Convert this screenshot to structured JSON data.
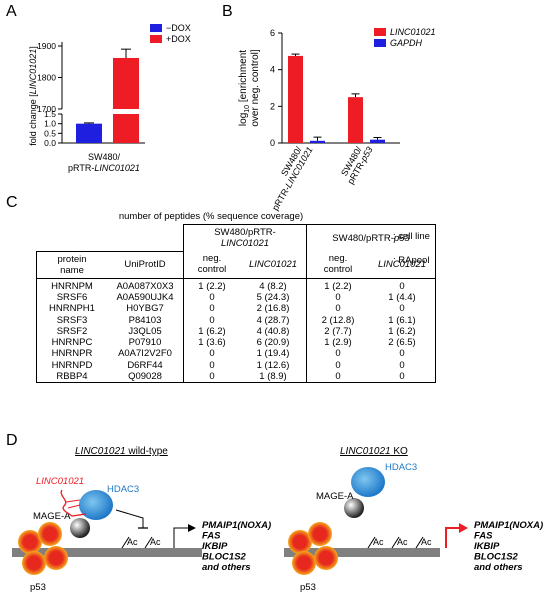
{
  "panels": {
    "a": {
      "letter": "A"
    },
    "b": {
      "letter": "B"
    },
    "c": {
      "letter": "C"
    },
    "d": {
      "letter": "D"
    }
  },
  "chart_data": [
    {
      "type": "bar",
      "panel": "A",
      "title": "",
      "ylabel": "fold change [LINC01021]",
      "xlabel": "SW480/ pRTR-LINC01021",
      "axis_break": {
        "lower": [
          0,
          1.5
        ],
        "upper": [
          1700,
          1900
        ]
      },
      "lower_ticks": [
        "0.0",
        "0.5",
        "1.0",
        "1.5"
      ],
      "upper_ticks": [
        "1700",
        "1800",
        "1900"
      ],
      "series": [
        {
          "name": "−DOX",
          "color": "#1f1fe0",
          "values": [
            1.0
          ],
          "error": [
            0.04
          ]
        },
        {
          "name": "+DOX",
          "color": "#ee1c24",
          "values": [
            1862
          ],
          "error": [
            28
          ]
        }
      ]
    },
    {
      "type": "bar",
      "panel": "B",
      "title": "",
      "ylabel": "log10 [enrichment over neg. control]",
      "categories": [
        "SW480/ pRTR-LINC01021",
        "SW480/ pRTR-p53"
      ],
      "ylim": [
        0,
        6
      ],
      "yticks": [
        "0",
        "2",
        "4",
        "6"
      ],
      "series": [
        {
          "name": "LINC01021",
          "color": "#ee1c24",
          "values": [
            4.75,
            2.5
          ],
          "error": [
            0.1,
            0.18
          ]
        },
        {
          "name": "GAPDH",
          "color": "#1f1fe0",
          "values": [
            0.12,
            0.18
          ],
          "error": [
            0.2,
            0.12
          ]
        }
      ]
    }
  ],
  "table": {
    "caption": "number of peptides (% sequence coverage)",
    "group1": "SW480/pRTR-",
    "group1_line2": "LINC01021",
    "group2_prefix": "SW480/pRTR-",
    "group2_italic": "p53",
    "cell_line_label": ": cell line",
    "rapool_label": ": RApool",
    "col_protein_line1": "protein",
    "col_protein_line2": "name",
    "col_uniprot": "UniProtID",
    "col_neg_line1": "neg.",
    "col_neg_line2": "control",
    "col_linc": "LINC01021",
    "rows": [
      [
        "HNRNPM",
        "A0A087X0X3",
        "1 (2.2)",
        "4 (8.2)",
        "1 (2.2)",
        "0"
      ],
      [
        "SRSF6",
        "A0A590UJK4",
        "0",
        "5 (24.3)",
        "0",
        "1 (4.4)"
      ],
      [
        "HNRNPH1",
        "H0YBG7",
        "0",
        "2 (16.8)",
        "0",
        "0"
      ],
      [
        "SRSF3",
        "P84103",
        "0",
        "4 (28.7)",
        "2 (12.8)",
        "1 (6.1)"
      ],
      [
        "SRSF2",
        "J3QL05",
        "1 (6.2)",
        "4 (40.8)",
        "2 (7.7)",
        "1 (6.2)"
      ],
      [
        "HNRNPC",
        "P07910",
        "1 (3.6)",
        "6 (20.9)",
        "1 (2.9)",
        "2 (6.5)"
      ],
      [
        "HNRNPR",
        "A0A7I2V2F0",
        "0",
        "1 (19.4)",
        "0",
        "0"
      ],
      [
        "HNRNPD",
        "D6RF44",
        "0",
        "1 (12.6)",
        "0",
        "0"
      ],
      [
        "RBBP4",
        "Q09028",
        "0",
        "1 (8.9)",
        "0",
        "0"
      ]
    ]
  },
  "diagram": {
    "wt_title_italic": "LINC01021",
    "wt_title_rest": " wild-type",
    "ko_title_italic": "LINC01021",
    "ko_title_rest": " KO",
    "linc_label": "LINC01021",
    "hdac3": "HDAC3",
    "magea": "MAGE-A",
    "p53": "p53",
    "ac": "Ac",
    "genes": [
      "PMAIP1(NOXA)",
      "FAS",
      "IKBIP",
      "BLOC1S2",
      "and others"
    ],
    "colors": {
      "red": "#ee1c24",
      "blue": "#1f1fe0",
      "hdac": "#2b8fd6",
      "dna": "#808080",
      "p53_fill": "#e6281e",
      "p53_ring": "#f7a81b"
    }
  }
}
